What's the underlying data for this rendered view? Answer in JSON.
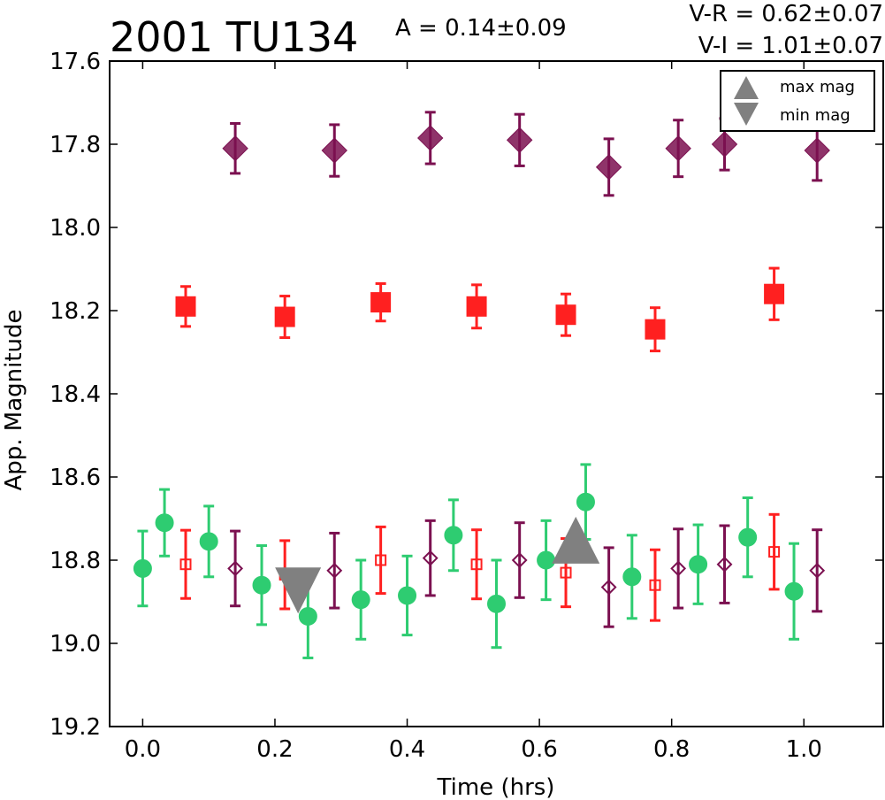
{
  "header": {
    "object_name": "2001 TU134",
    "amplitude": "A  = 0.14±0.09",
    "v_r": "V-R = 0.62±0.07",
    "v_i": "V-I  = 1.01±0.07"
  },
  "chart_data": {
    "type": "scatter",
    "xlabel": "Time (hrs)",
    "ylabel": "App. Magnitude",
    "xlim": [
      -0.05,
      1.12
    ],
    "ylim": [
      19.2,
      17.6
    ],
    "y_inverted": true,
    "xticks": [
      "0.0",
      "0.2",
      "0.4",
      "0.6",
      "0.8",
      "1.0"
    ],
    "xtick_values": [
      0.0,
      0.2,
      0.4,
      0.6,
      0.8,
      1.0
    ],
    "yticks": [
      "17.6",
      "17.8",
      "18.0",
      "18.2",
      "18.4",
      "18.6",
      "18.8",
      "19.0",
      "19.2"
    ],
    "ytick_values": [
      17.6,
      17.8,
      18.0,
      18.2,
      18.4,
      18.6,
      18.8,
      19.0,
      19.2
    ],
    "grid": false,
    "legend_position": "top-right",
    "legend": [
      {
        "label": "max mag",
        "marker": "triangle-up",
        "color": "#808080"
      },
      {
        "label": "min mag",
        "marker": "triangle-down",
        "color": "#808080"
      }
    ],
    "colors": {
      "green": "#2ecc71",
      "red": "#ff2020",
      "purple": "#7b1050"
    },
    "series": [
      {
        "marker": "circle",
        "filled": true,
        "color": "#2ecc71",
        "x": [
          0.0,
          0.033,
          0.1,
          0.18,
          0.25,
          0.33,
          0.4,
          0.47,
          0.535,
          0.61,
          0.67,
          0.74,
          0.84,
          0.915,
          0.985
        ],
        "y": [
          18.82,
          18.71,
          18.755,
          18.86,
          18.935,
          18.895,
          18.885,
          18.74,
          18.905,
          18.8,
          18.66,
          18.84,
          18.81,
          18.745,
          18.875
        ],
        "err": [
          0.09,
          0.08,
          0.085,
          0.095,
          0.1,
          0.095,
          0.095,
          0.085,
          0.105,
          0.095,
          0.09,
          0.1,
          0.095,
          0.095,
          0.115
        ]
      },
      {
        "marker": "square",
        "filled": true,
        "color": "#ff2020",
        "x": [
          0.065,
          0.215,
          0.36,
          0.505,
          0.64,
          0.775,
          0.955
        ],
        "y": [
          18.19,
          18.215,
          18.18,
          18.19,
          18.21,
          18.245,
          18.16
        ],
        "err": [
          0.048,
          0.05,
          0.045,
          0.052,
          0.05,
          0.052,
          0.062
        ]
      },
      {
        "marker": "square",
        "filled": false,
        "color": "#ff2020",
        "x": [
          0.065,
          0.215,
          0.36,
          0.505,
          0.64,
          0.775,
          0.955
        ],
        "y": [
          18.81,
          18.835,
          18.8,
          18.81,
          18.83,
          18.86,
          18.78
        ],
        "err": [
          0.082,
          0.082,
          0.08,
          0.083,
          0.082,
          0.085,
          0.09
        ]
      },
      {
        "marker": "diamond",
        "filled": true,
        "color": "#7b1050",
        "x": [
          0.14,
          0.29,
          0.435,
          0.57,
          0.705,
          0.81,
          0.88,
          1.02
        ],
        "y": [
          17.81,
          17.815,
          17.785,
          17.79,
          17.855,
          17.81,
          17.8,
          17.815
        ],
        "err": [
          0.06,
          0.062,
          0.062,
          0.062,
          0.068,
          0.068,
          0.062,
          0.072
        ]
      },
      {
        "marker": "diamond",
        "filled": false,
        "color": "#7b1050",
        "x": [
          0.14,
          0.29,
          0.435,
          0.57,
          0.705,
          0.81,
          0.88,
          1.02
        ],
        "y": [
          18.82,
          18.825,
          18.795,
          18.8,
          18.865,
          18.82,
          18.81,
          18.825
        ],
        "err": [
          0.09,
          0.09,
          0.09,
          0.09,
          0.095,
          0.095,
          0.093,
          0.098
        ]
      },
      {
        "marker": "triangle-up",
        "filled": true,
        "color": "#808080",
        "name": "max mag",
        "x": [
          0.655
        ],
        "y": [
          18.755
        ]
      },
      {
        "marker": "triangle-down",
        "filled": true,
        "color": "#808080",
        "name": "min mag",
        "x": [
          0.235
        ],
        "y": [
          18.875
        ]
      }
    ]
  }
}
